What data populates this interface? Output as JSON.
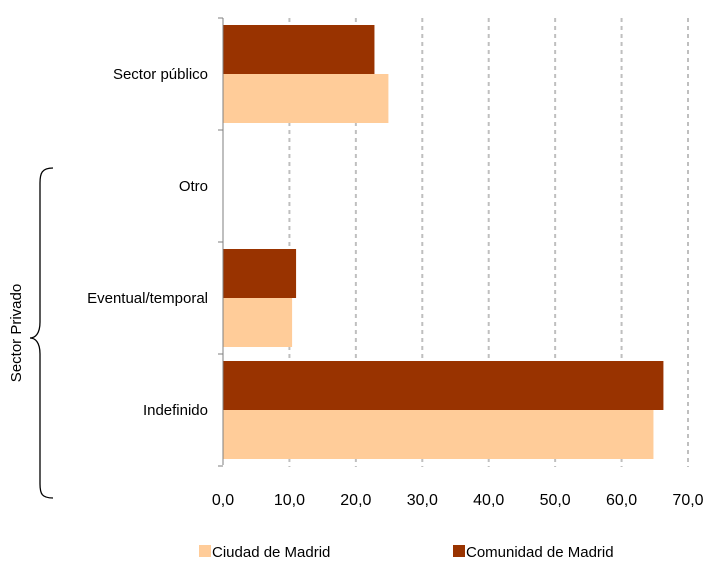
{
  "chart_data": {
    "type": "bar",
    "orientation": "horizontal",
    "categories": [
      "Sector público",
      "Otro",
      "Eventual/temporal",
      "Indefinido"
    ],
    "series": [
      {
        "name": "Comunidad de Madrid",
        "color": "#993300",
        "values": [
          22.8,
          null,
          11.0,
          66.3
        ]
      },
      {
        "name": "Ciudad de Madrid",
        "color": "#FFCC99",
        "values": [
          24.9,
          null,
          10.4,
          64.8
        ]
      }
    ],
    "xlim": [
      0,
      70
    ],
    "xticks": [
      "0,0",
      "10,0",
      "20,0",
      "30,0",
      "40,0",
      "50,0",
      "60,0",
      "70,0"
    ],
    "grid": "vertical dashed",
    "legend_placement": "bottom",
    "legend": [
      "Ciudad de Madrid",
      "Comunidad de Madrid"
    ],
    "group_annotation": {
      "label": "Sector Privado",
      "categories": [
        "Otro",
        "Eventual/temporal",
        "Indefinido"
      ]
    }
  }
}
